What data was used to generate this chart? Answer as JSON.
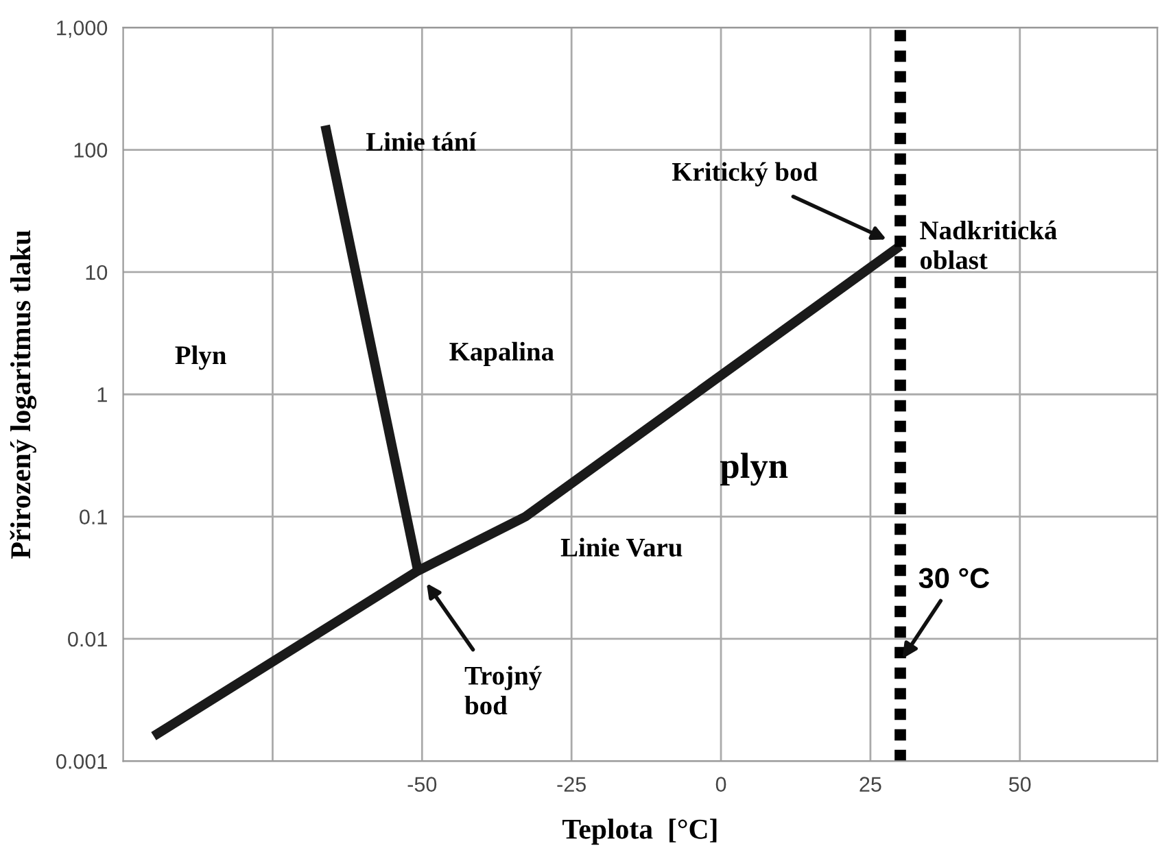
{
  "chart_data": {
    "type": "line",
    "xlabel": "Teplota  [°C]",
    "ylabel": "Přirozený logaritmus tlaku",
    "series": [
      {
        "color": "#1a1a1a",
        "x": [
          -66.2,
          -50.7
        ],
        "values": [
          158,
          0.036
        ]
      },
      {
        "color": "#1a1a1a",
        "x": [
          -94.9,
          -50.7,
          -32.7,
          30
        ],
        "values": [
          0.0016,
          0.036,
          0.1,
          16.4
        ]
      }
    ],
    "log": "y",
    "xlim": [
      -100,
      73
    ],
    "ylim": [
      0.001,
      1000
    ],
    "xticks": [
      {
        "value": -75,
        "label": null
      },
      -50,
      -25,
      0,
      25,
      50
    ],
    "yticks": [
      0.001,
      0.01,
      0.1,
      1,
      10,
      100,
      {
        "value": 1000,
        "label": "1,000"
      }
    ],
    "grid": true,
    "line_style": "solid",
    "marker": "none",
    "ref_lines": [
      {
        "axis": "x",
        "value": 30,
        "label": "30 °C",
        "color": "#000000",
        "line_style": "dotted"
      }
    ],
    "annotations": [
      "Linie tání",
      "Plyn",
      "Kapalina",
      "plyn",
      "Linie Varu",
      "Nadkritická\noblast",
      "Kritický bod",
      "Trojný\nbod"
    ]
  }
}
